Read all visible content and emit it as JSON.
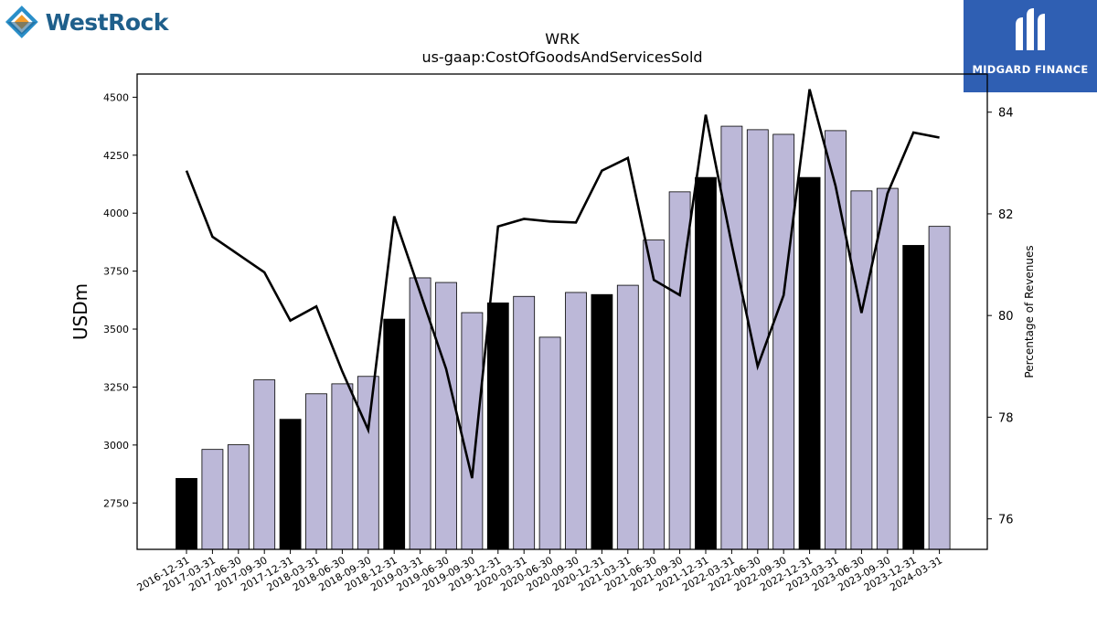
{
  "logos": {
    "left_text": "WestRock",
    "right_text": "MIDGARD FINANCE"
  },
  "colors": {
    "bar_light": "#bcb8d8",
    "bar_dark": "#000000",
    "line": "#000000",
    "logo_right_bg": "#2f5fb3",
    "logo_left_text": "#1f5f8b"
  },
  "chart_data": {
    "type": "bar",
    "title": "WRK",
    "subtitle": "us-gaap:CostOfGoodsAndServicesSold",
    "ylabel": "USDm",
    "y2label": "Percentage of Revenues",
    "ylim": [
      2550,
      4600
    ],
    "y2lim": [
      75.4,
      84.75
    ],
    "yticks": [
      2750,
      3000,
      3250,
      3500,
      3750,
      4000,
      4250,
      4500
    ],
    "y2ticks": [
      76,
      78,
      80,
      82,
      84
    ],
    "grid": false,
    "categories": [
      "2016-12-31",
      "2017-03-31",
      "2017-06-30",
      "2017-09-30",
      "2017-12-31",
      "2018-03-31",
      "2018-06-30",
      "2018-09-30",
      "2018-12-31",
      "2019-03-31",
      "2019-06-30",
      "2019-09-30",
      "2019-12-31",
      "2020-03-31",
      "2020-06-30",
      "2020-09-30",
      "2020-12-31",
      "2021-03-31",
      "2021-06-30",
      "2021-09-30",
      "2021-12-31",
      "2022-03-31",
      "2022-06-30",
      "2022-09-30",
      "2022-12-31",
      "2023-03-31",
      "2023-06-30",
      "2023-09-30",
      "2023-12-31",
      "2024-03-31"
    ],
    "series": [
      {
        "values": [
          2856,
          2981,
          3001,
          3281,
          3111,
          3221,
          3264,
          3296,
          3543,
          3721,
          3701,
          3571,
          3613,
          3641,
          3465,
          3658,
          3649,
          3689,
          3884,
          4092,
          4154,
          4375,
          4360,
          4340,
          4154,
          4356,
          4096,
          4107,
          3861,
          3943
        ],
        "highlighted": [
          true,
          false,
          false,
          false,
          true,
          false,
          false,
          false,
          true,
          false,
          false,
          false,
          true,
          false,
          false,
          false,
          true,
          false,
          false,
          false,
          true,
          false,
          false,
          false,
          true,
          false,
          false,
          false,
          true,
          false
        ]
      },
      {
        "axis": "right",
        "type": "line",
        "values": [
          82.85,
          81.55,
          81.2,
          80.85,
          79.9,
          80.18,
          78.9,
          77.75,
          81.95,
          80.45,
          78.95,
          76.8,
          81.75,
          81.9,
          81.85,
          81.83,
          82.85,
          83.1,
          80.7,
          80.4,
          83.95,
          81.4,
          79.0,
          80.4,
          84.45,
          82.55,
          80.05,
          82.4,
          83.6,
          83.5
        ]
      }
    ]
  }
}
